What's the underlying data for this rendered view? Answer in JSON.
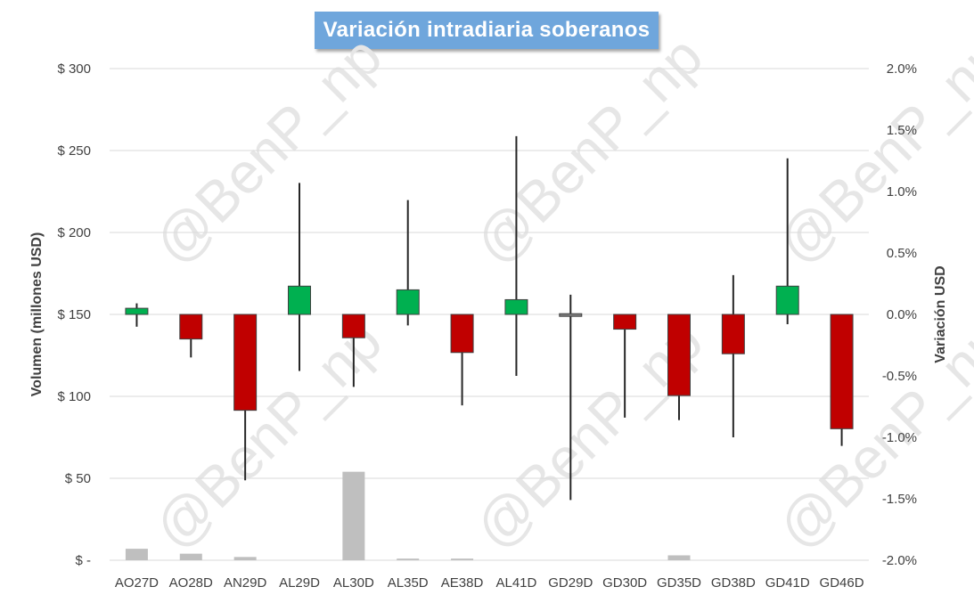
{
  "chart_data": {
    "type": "candlestick",
    "title": "Variación intradiaria soberanos",
    "categories": [
      "AO27D",
      "AO28D",
      "AN29D",
      "AL29D",
      "AL30D",
      "AL35D",
      "AE38D",
      "AL41D",
      "GD29D",
      "GD30D",
      "GD35D",
      "GD38D",
      "GD41D",
      "GD46D"
    ],
    "candles": {
      "name": "Variación USD",
      "open": [
        0,
        0,
        0,
        0,
        0,
        0,
        0,
        0,
        0,
        0,
        0,
        0,
        0,
        0
      ],
      "close": [
        0.05,
        -0.2,
        -0.78,
        0.23,
        -0.19,
        0.2,
        -0.31,
        0.12,
        -0.01,
        -0.12,
        -0.66,
        -0.32,
        0.23,
        -0.93
      ],
      "high": [
        0.09,
        0.0,
        0.0,
        1.07,
        0.0,
        0.93,
        0.0,
        1.45,
        0.16,
        0.0,
        0.0,
        0.32,
        1.27,
        0.0
      ],
      "low": [
        -0.1,
        -0.35,
        -1.35,
        -0.46,
        -0.59,
        -0.09,
        -0.74,
        -0.5,
        -1.51,
        -0.84,
        -0.86,
        -1.0,
        -0.08,
        -1.07
      ],
      "up_color": "#00b050",
      "down_color": "#c00000"
    },
    "volume": {
      "name": "Volumen (millones USD)",
      "values": [
        7,
        4,
        2,
        0,
        54,
        1,
        1,
        0,
        0,
        0,
        3,
        0,
        0,
        0
      ],
      "color": "#bfbfbf"
    },
    "y_left": {
      "label": "Volumen (millones USD)",
      "ylim": [
        0,
        300
      ],
      "ticks": [
        0,
        50,
        100,
        150,
        200,
        250,
        300
      ],
      "tick_labels": [
        "$ -",
        "$ 50",
        "$ 100",
        "$ 150",
        "$ 200",
        "$ 250",
        "$ 300"
      ]
    },
    "y_right": {
      "label": "Variación USD",
      "ylim": [
        -2.0,
        2.0
      ],
      "ticks": [
        -2.0,
        -1.5,
        -1.0,
        -0.5,
        0.0,
        0.5,
        1.0,
        1.5,
        2.0
      ],
      "tick_labels": [
        "-2.0%",
        "-1.5%",
        "-1.0%",
        "-0.5%",
        "0.0%",
        "0.5%",
        "1.0%",
        "1.5%",
        "2.0%"
      ]
    },
    "grid": true,
    "watermark": "@BenP_np",
    "gridline_color": "#d9d9d9"
  }
}
